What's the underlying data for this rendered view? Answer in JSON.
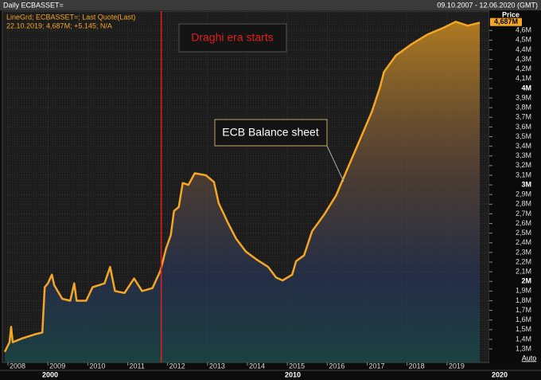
{
  "header": {
    "title": "Daily ECBASSET=",
    "range": "09.10.2007 - 12.06.2020 (GMT)",
    "legend_line1": "LineGrd; ECBASSET=; Last Quote(Last)",
    "legend_line2": "22.10.2019; 4,687M; +5.145; N/A",
    "axis_title": "Price",
    "auto": "Auto"
  },
  "chart_data": {
    "type": "area-line",
    "x": [
      2007.92,
      2008.04,
      2008.08,
      2008.12,
      2008.36,
      2008.66,
      2008.86,
      2008.92,
      2009.0,
      2009.1,
      2009.16,
      2009.36,
      2009.56,
      2009.66,
      2009.72,
      2009.96,
      2010.12,
      2010.42,
      2010.56,
      2010.68,
      2010.92,
      2011.16,
      2011.36,
      2011.62,
      2011.82,
      2011.96,
      2012.08,
      2012.16,
      2012.28,
      2012.38,
      2012.52,
      2012.68,
      2012.96,
      2013.16,
      2013.28,
      2013.52,
      2013.72,
      2013.96,
      2014.22,
      2014.52,
      2014.72,
      2014.88,
      2015.12,
      2015.22,
      2015.42,
      2015.62,
      2015.92,
      2016.22,
      2016.52,
      2016.82,
      2017.12,
      2017.32,
      2017.42,
      2017.72,
      2018.12,
      2018.52,
      2018.92,
      2019.22,
      2019.52,
      2019.82
    ],
    "series": [
      {
        "name": "ECBASSET=",
        "color": "#f5a623",
        "values": [
          1.27,
          1.37,
          1.53,
          1.37,
          1.41,
          1.45,
          1.47,
          1.94,
          1.98,
          2.07,
          1.96,
          1.82,
          1.8,
          1.98,
          1.8,
          1.8,
          1.94,
          1.98,
          2.15,
          1.9,
          1.88,
          2.03,
          1.9,
          1.93,
          2.11,
          2.34,
          2.48,
          2.73,
          2.77,
          3.02,
          3.0,
          3.12,
          3.1,
          3.03,
          2.81,
          2.6,
          2.44,
          2.31,
          2.23,
          2.15,
          2.04,
          2.01,
          2.07,
          2.21,
          2.27,
          2.52,
          2.69,
          2.89,
          3.18,
          3.47,
          3.76,
          4.01,
          4.17,
          4.34,
          4.46,
          4.56,
          4.63,
          4.69,
          4.65,
          4.68
        ]
      }
    ],
    "xlim": [
      2007.86,
      2020.06
    ],
    "xticks": [
      2008,
      2009,
      2010,
      2011,
      2012,
      2013,
      2014,
      2015,
      2016,
      2017,
      2018,
      2019
    ],
    "decade_labels": [
      "2000",
      "2010",
      "2020"
    ],
    "ylim": [
      1.16,
      4.8
    ],
    "yticks": [
      {
        "value": 1.3,
        "label": "1,3M"
      },
      {
        "value": 1.4,
        "label": "1,4M"
      },
      {
        "value": 1.5,
        "label": "1,5M"
      },
      {
        "value": 1.6,
        "label": "1,6M"
      },
      {
        "value": 1.7,
        "label": "1,7M"
      },
      {
        "value": 1.8,
        "label": "1,8M"
      },
      {
        "value": 1.9,
        "label": "1,9M"
      },
      {
        "value": 2,
        "label": "2M"
      },
      {
        "value": 2.1,
        "label": "2,1M"
      },
      {
        "value": 2.2,
        "label": "2,2M"
      },
      {
        "value": 2.3,
        "label": "2,3M"
      },
      {
        "value": 2.4,
        "label": "2,4M"
      },
      {
        "value": 2.5,
        "label": "2,5M"
      },
      {
        "value": 2.6,
        "label": "2,6M"
      },
      {
        "value": 2.7,
        "label": "2,7M"
      },
      {
        "value": 2.8,
        "label": "2,8M"
      },
      {
        "value": 2.9,
        "label": "2,9M"
      },
      {
        "value": 3,
        "label": "3M"
      },
      {
        "value": 3.1,
        "label": "3,1M"
      },
      {
        "value": 3.2,
        "label": "3,2M"
      },
      {
        "value": 3.3,
        "label": "3,3M"
      },
      {
        "value": 3.4,
        "label": "3,4M"
      },
      {
        "value": 3.5,
        "label": "3,5M"
      },
      {
        "value": 3.6,
        "label": "3,6M"
      },
      {
        "value": 3.7,
        "label": "3,7M"
      },
      {
        "value": 3.8,
        "label": "3,8M"
      },
      {
        "value": 3.9,
        "label": "3,9M"
      },
      {
        "value": 4,
        "label": "4M"
      },
      {
        "value": 4.1,
        "label": "4,1M"
      },
      {
        "value": 4.2,
        "label": "4,2M"
      },
      {
        "value": 4.3,
        "label": "4,3M"
      },
      {
        "value": 4.4,
        "label": "4,4M"
      },
      {
        "value": 4.5,
        "label": "4,5M"
      },
      {
        "value": 4.6,
        "label": "4,6M"
      }
    ],
    "grid": true,
    "last_value": {
      "value": 4.687,
      "label": "4,687M"
    },
    "vline": {
      "x": 2011.84,
      "label": "Draghi era starts",
      "color": "#e0201c"
    },
    "annotation": "ECB Balance sheet"
  }
}
